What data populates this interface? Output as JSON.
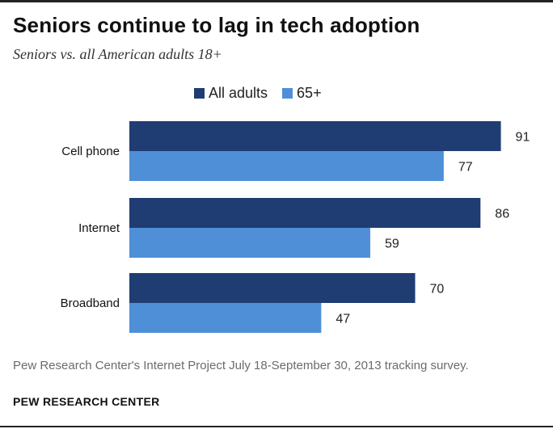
{
  "chart_data": {
    "type": "bar",
    "orientation": "horizontal",
    "title": "Seniors continue to lag in tech adoption",
    "subtitle": "Seniors vs. all American adults 18+",
    "categories": [
      "Cell phone",
      "Internet",
      "Broadband"
    ],
    "series": [
      {
        "name": "All adults",
        "values": [
          91,
          86,
          70
        ],
        "color": "#1f3d73"
      },
      {
        "name": "65+",
        "values": [
          77,
          59,
          47
        ],
        "color": "#4f8fd8"
      }
    ],
    "xlim": [
      0,
      100
    ],
    "grid": false,
    "legend": "top",
    "data_labels": true
  },
  "footer": {
    "note": "Pew Research Center's Internet Project July 18-September 30, 2013 tracking survey.",
    "source": "PEW RESEARCH CENTER"
  }
}
